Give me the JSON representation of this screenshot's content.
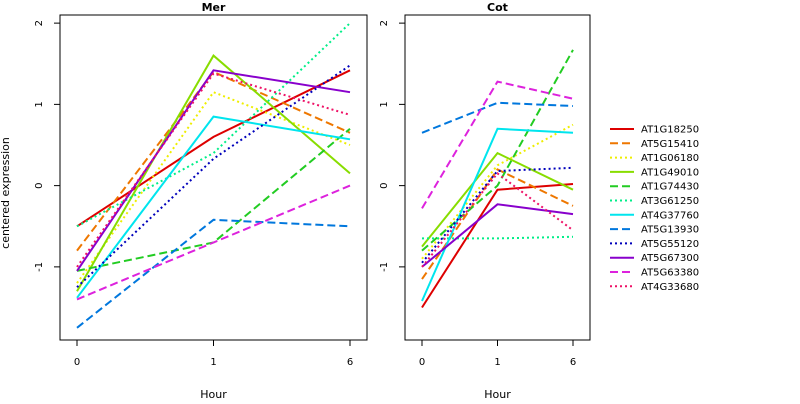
{
  "chart_data": {
    "type": "line",
    "ylabel": "centered expression",
    "panels": [
      {
        "title": "Mer",
        "xlabel": "Hour",
        "categories": [
          "0",
          "1",
          "6"
        ],
        "ylim": [
          -1.9,
          2.1
        ],
        "yticks": [
          -1,
          0,
          1,
          2
        ],
        "series": [
          {
            "name": "AT1G18250",
            "color": "#dd0000",
            "dash": "solid",
            "values": [
              -0.5,
              0.6,
              1.42
            ]
          },
          {
            "name": "AT5G15410",
            "color": "#ee7700",
            "dash": "dashed",
            "values": [
              -0.8,
              1.4,
              0.65
            ]
          },
          {
            "name": "AT1G06180",
            "color": "#eeee00",
            "dash": "dotted",
            "values": [
              -1.2,
              1.15,
              0.5
            ]
          },
          {
            "name": "AT1G49010",
            "color": "#88dd00",
            "dash": "solid",
            "values": [
              -1.3,
              1.6,
              0.15
            ]
          },
          {
            "name": "AT1G74430",
            "color": "#22cc22",
            "dash": "dashed",
            "values": [
              -1.05,
              -0.7,
              0.7
            ]
          },
          {
            "name": "AT3G61250",
            "color": "#00ee88",
            "dash": "dotted",
            "values": [
              -0.5,
              0.4,
              2.0
            ]
          },
          {
            "name": "AT4G37760",
            "color": "#00e5ee",
            "dash": "solid",
            "values": [
              -1.38,
              0.85,
              0.57
            ]
          },
          {
            "name": "AT5G13930",
            "color": "#0077dd",
            "dash": "dashed",
            "values": [
              -1.75,
              -0.42,
              -0.5
            ]
          },
          {
            "name": "AT5G55120",
            "color": "#0000bb",
            "dash": "dotted",
            "values": [
              -1.25,
              0.33,
              1.48
            ]
          },
          {
            "name": "AT5G67300",
            "color": "#8800cc",
            "dash": "solid",
            "values": [
              -1.05,
              1.42,
              1.15
            ]
          },
          {
            "name": "AT5G63380",
            "color": "#dd22dd",
            "dash": "dashed",
            "values": [
              -1.4,
              -0.7,
              0.0
            ]
          },
          {
            "name": "AT4G33680",
            "color": "#ee1166",
            "dash": "dotted",
            "values": [
              -1.0,
              1.38,
              0.87
            ]
          }
        ]
      },
      {
        "title": "Cot",
        "xlabel": "Hour",
        "categories": [
          "0",
          "1",
          "6"
        ],
        "ylim": [
          -1.9,
          2.1
        ],
        "yticks": [
          -1,
          0,
          1,
          2
        ],
        "series": [
          {
            "name": "AT1G18250",
            "color": "#dd0000",
            "dash": "solid",
            "values": [
              -1.5,
              -0.05,
              0.02
            ]
          },
          {
            "name": "AT5G15410",
            "color": "#ee7700",
            "dash": "dashed",
            "values": [
              -1.15,
              0.2,
              -0.25
            ]
          },
          {
            "name": "AT1G06180",
            "color": "#eeee00",
            "dash": "dotted",
            "values": [
              -0.9,
              0.25,
              0.75
            ]
          },
          {
            "name": "AT1G49010",
            "color": "#88dd00",
            "dash": "solid",
            "values": [
              -0.75,
              0.4,
              -0.05
            ]
          },
          {
            "name": "AT1G74430",
            "color": "#22cc22",
            "dash": "dashed",
            "values": [
              -0.8,
              0.0,
              1.67
            ]
          },
          {
            "name": "AT3G61250",
            "color": "#00ee88",
            "dash": "dotted",
            "values": [
              -0.65,
              -0.65,
              -0.63
            ]
          },
          {
            "name": "AT4G37760",
            "color": "#00e5ee",
            "dash": "solid",
            "values": [
              -1.42,
              0.7,
              0.65
            ]
          },
          {
            "name": "AT5G13930",
            "color": "#0077dd",
            "dash": "dashed",
            "values": [
              0.65,
              1.02,
              0.98
            ]
          },
          {
            "name": "AT5G55120",
            "color": "#0000bb",
            "dash": "dotted",
            "values": [
              -0.95,
              0.18,
              0.22
            ]
          },
          {
            "name": "AT5G67300",
            "color": "#8800cc",
            "dash": "solid",
            "values": [
              -1.0,
              -0.23,
              -0.35
            ]
          },
          {
            "name": "AT5G63380",
            "color": "#dd22dd",
            "dash": "dashed",
            "values": [
              -0.28,
              1.28,
              1.07
            ]
          },
          {
            "name": "AT4G33680",
            "color": "#ee1166",
            "dash": "dotted",
            "values": [
              -1.0,
              0.15,
              -0.55
            ]
          }
        ]
      }
    ],
    "legend": {
      "position": "right",
      "entries": [
        {
          "label": "AT1G18250",
          "color": "#dd0000",
          "dash": "solid"
        },
        {
          "label": "AT5G15410",
          "color": "#ee7700",
          "dash": "dashed"
        },
        {
          "label": "AT1G06180",
          "color": "#eeee00",
          "dash": "dotted"
        },
        {
          "label": "AT1G49010",
          "color": "#88dd00",
          "dash": "solid"
        },
        {
          "label": "AT1G74430",
          "color": "#22cc22",
          "dash": "dashed"
        },
        {
          "label": "AT3G61250",
          "color": "#00ee88",
          "dash": "dotted"
        },
        {
          "label": "AT4G37760",
          "color": "#00e5ee",
          "dash": "solid"
        },
        {
          "label": "AT5G13930",
          "color": "#0077dd",
          "dash": "dashed"
        },
        {
          "label": "AT5G55120",
          "color": "#0000bb",
          "dash": "dotted"
        },
        {
          "label": "AT5G67300",
          "color": "#8800cc",
          "dash": "solid"
        },
        {
          "label": "AT5G63380",
          "color": "#dd22dd",
          "dash": "dashed"
        },
        {
          "label": "AT4G33680",
          "color": "#ee1166",
          "dash": "dotted"
        }
      ]
    }
  }
}
